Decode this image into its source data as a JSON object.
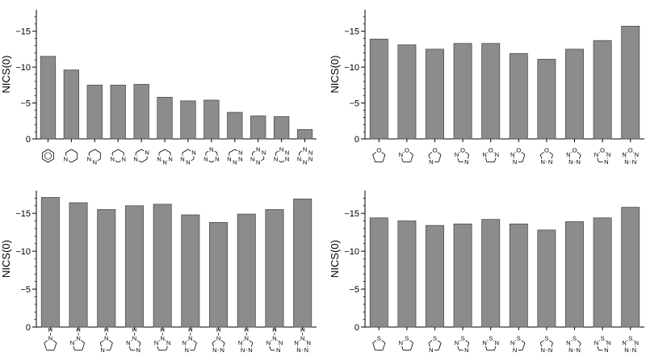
{
  "chart_data": [
    {
      "type": "bar",
      "panel": "top-left",
      "ylabel": "NICS(0)",
      "ylim": [
        0,
        -18
      ],
      "yticks": [
        0,
        -5,
        -10,
        -15
      ],
      "ytick_labels": [
        "0",
        "−5",
        "−10",
        "−15"
      ],
      "values": [
        -11.5,
        -9.6,
        -7.5,
        -7.5,
        -7.6,
        -5.8,
        -5.3,
        -5.4,
        -3.7,
        -3.2,
        -3.1,
        -1.3
      ],
      "category_icons": [
        {
          "hetero": []
        },
        {
          "hetero": [
            {
              "pos": 4,
              "label": "N"
            }
          ]
        },
        {
          "hetero": [
            {
              "pos": 4,
              "label": "N"
            },
            {
              "pos": 3,
              "label": "N"
            }
          ]
        },
        {
          "hetero": [
            {
              "pos": 4,
              "label": "N"
            },
            {
              "pos": 2,
              "label": "N"
            }
          ]
        },
        {
          "hetero": [
            {
              "pos": 4,
              "label": "N"
            },
            {
              "pos": 1,
              "label": "N"
            }
          ]
        },
        {
          "hetero": [
            {
              "pos": 4,
              "label": "N"
            },
            {
              "pos": 3,
              "label": "N"
            },
            {
              "pos": 2,
              "label": "N"
            }
          ]
        },
        {
          "hetero": [
            {
              "pos": 4,
              "label": "N"
            },
            {
              "pos": 3,
              "label": "N"
            },
            {
              "pos": 1,
              "label": "N"
            }
          ]
        },
        {
          "hetero": [
            {
              "pos": 4,
              "label": "N"
            },
            {
              "pos": 2,
              "label": "N"
            },
            {
              "pos": 0,
              "label": "N"
            }
          ]
        },
        {
          "hetero": [
            {
              "pos": 4,
              "label": "N"
            },
            {
              "pos": 3,
              "label": "N"
            },
            {
              "pos": 2,
              "label": "N"
            },
            {
              "pos": 1,
              "label": "N"
            }
          ]
        },
        {
          "hetero": [
            {
              "pos": 4,
              "label": "N"
            },
            {
              "pos": 3,
              "label": "N"
            },
            {
              "pos": 1,
              "label": "N"
            },
            {
              "pos": 0,
              "label": "N"
            }
          ]
        },
        {
          "hetero": [
            {
              "pos": 4,
              "label": "N"
            },
            {
              "pos": 2,
              "label": "N"
            },
            {
              "pos": 1,
              "label": "N"
            },
            {
              "pos": 0,
              "label": "N"
            }
          ]
        },
        {
          "hetero": [
            {
              "pos": 4,
              "label": "N"
            },
            {
              "pos": 3,
              "label": "N"
            },
            {
              "pos": 2,
              "label": "N"
            },
            {
              "pos": 1,
              "label": "N"
            },
            {
              "pos": 0,
              "label": "N"
            }
          ]
        }
      ]
    },
    {
      "type": "bar",
      "panel": "top-right",
      "ylabel": "NICS(0)",
      "ylim": [
        0,
        -18
      ],
      "yticks": [
        0,
        -5,
        -10,
        -15
      ],
      "ytick_labels": [
        "0",
        "−5",
        "−10",
        "−15"
      ],
      "values": [
        -13.9,
        -13.1,
        -12.5,
        -13.3,
        -13.3,
        -11.9,
        -11.1,
        -12.5,
        -13.7,
        -15.7
      ],
      "category_icons": [
        {
          "hetero": [
            {
              "pos": 0,
              "label": "O"
            }
          ]
        },
        {
          "hetero": [
            {
              "pos": 0,
              "label": "O"
            },
            {
              "pos": 4,
              "label": "N"
            }
          ]
        },
        {
          "hetero": [
            {
              "pos": 0,
              "label": "O"
            },
            {
              "pos": 3,
              "label": "N"
            }
          ]
        },
        {
          "hetero": [
            {
              "pos": 0,
              "label": "O"
            },
            {
              "pos": 4,
              "label": "N"
            },
            {
              "pos": 2,
              "label": "N"
            }
          ]
        },
        {
          "hetero": [
            {
              "pos": 0,
              "label": "O"
            },
            {
              "pos": 4,
              "label": "N"
            },
            {
              "pos": 1,
              "label": "N"
            }
          ]
        },
        {
          "hetero": [
            {
              "pos": 0,
              "label": "O"
            },
            {
              "pos": 4,
              "label": "N"
            },
            {
              "pos": 3,
              "label": "N"
            }
          ]
        },
        {
          "hetero": [
            {
              "pos": 0,
              "label": "O"
            },
            {
              "pos": 3,
              "label": "N"
            },
            {
              "pos": 2,
              "label": "N"
            }
          ]
        },
        {
          "hetero": [
            {
              "pos": 0,
              "label": "O"
            },
            {
              "pos": 4,
              "label": "N"
            },
            {
              "pos": 3,
              "label": "N"
            },
            {
              "pos": 2,
              "label": "N"
            }
          ]
        },
        {
          "hetero": [
            {
              "pos": 0,
              "label": "O"
            },
            {
              "pos": 4,
              "label": "N"
            },
            {
              "pos": 2,
              "label": "N"
            },
            {
              "pos": 1,
              "label": "N"
            }
          ]
        },
        {
          "hetero": [
            {
              "pos": 0,
              "label": "O"
            },
            {
              "pos": 4,
              "label": "N"
            },
            {
              "pos": 3,
              "label": "N"
            },
            {
              "pos": 2,
              "label": "N"
            },
            {
              "pos": 1,
              "label": "N"
            }
          ]
        }
      ]
    },
    {
      "type": "bar",
      "panel": "bottom-left",
      "ylabel": "NICS(0)",
      "ylim": [
        0,
        -18
      ],
      "yticks": [
        0,
        -5,
        -10,
        -15
      ],
      "ytick_labels": [
        "0",
        "−5",
        "−10",
        "−15"
      ],
      "values": [
        -17.1,
        -16.4,
        -15.5,
        -16.0,
        -16.2,
        -14.8,
        -13.8,
        -14.9,
        -15.5,
        -16.9
      ],
      "category_icons": [
        {
          "hetero": [
            {
              "pos": 0,
              "label": "N",
              "top": "H"
            }
          ]
        },
        {
          "hetero": [
            {
              "pos": 0,
              "label": "N",
              "top": "H"
            },
            {
              "pos": 4,
              "label": "N"
            }
          ]
        },
        {
          "hetero": [
            {
              "pos": 0,
              "label": "N",
              "top": "H"
            },
            {
              "pos": 3,
              "label": "N"
            }
          ]
        },
        {
          "hetero": [
            {
              "pos": 0,
              "label": "N",
              "top": "H"
            },
            {
              "pos": 4,
              "label": "N"
            },
            {
              "pos": 2,
              "label": "N"
            }
          ]
        },
        {
          "hetero": [
            {
              "pos": 0,
              "label": "N",
              "top": "H"
            },
            {
              "pos": 4,
              "label": "N"
            },
            {
              "pos": 1,
              "label": "N"
            }
          ]
        },
        {
          "hetero": [
            {
              "pos": 0,
              "label": "N",
              "top": "H"
            },
            {
              "pos": 4,
              "label": "N"
            },
            {
              "pos": 3,
              "label": "N"
            }
          ]
        },
        {
          "hetero": [
            {
              "pos": 0,
              "label": "N",
              "top": "H"
            },
            {
              "pos": 3,
              "label": "N"
            },
            {
              "pos": 2,
              "label": "N"
            }
          ]
        },
        {
          "hetero": [
            {
              "pos": 0,
              "label": "N",
              "top": "H"
            },
            {
              "pos": 4,
              "label": "N"
            },
            {
              "pos": 3,
              "label": "N"
            },
            {
              "pos": 2,
              "label": "N"
            }
          ]
        },
        {
          "hetero": [
            {
              "pos": 0,
              "label": "N",
              "top": "H"
            },
            {
              "pos": 4,
              "label": "N"
            },
            {
              "pos": 2,
              "label": "N"
            },
            {
              "pos": 1,
              "label": "N"
            }
          ]
        },
        {
          "hetero": [
            {
              "pos": 0,
              "label": "N",
              "top": "H"
            },
            {
              "pos": 4,
              "label": "N"
            },
            {
              "pos": 3,
              "label": "N"
            },
            {
              "pos": 2,
              "label": "N"
            },
            {
              "pos": 1,
              "label": "N"
            }
          ]
        }
      ]
    },
    {
      "type": "bar",
      "panel": "bottom-right",
      "ylabel": "NICS(0)",
      "ylim": [
        0,
        -18
      ],
      "yticks": [
        0,
        -5,
        -10,
        -15
      ],
      "ytick_labels": [
        "0",
        "−5",
        "−10",
        "−15"
      ],
      "values": [
        -14.4,
        -14.0,
        -13.4,
        -13.6,
        -14.2,
        -13.6,
        -12.8,
        -13.9,
        -14.4,
        -15.8
      ],
      "category_icons": [
        {
          "hetero": [
            {
              "pos": 0,
              "label": "S"
            }
          ]
        },
        {
          "hetero": [
            {
              "pos": 0,
              "label": "S"
            },
            {
              "pos": 4,
              "label": "N"
            }
          ]
        },
        {
          "hetero": [
            {
              "pos": 0,
              "label": "S"
            },
            {
              "pos": 3,
              "label": "N"
            }
          ]
        },
        {
          "hetero": [
            {
              "pos": 0,
              "label": "S"
            },
            {
              "pos": 4,
              "label": "N"
            },
            {
              "pos": 2,
              "label": "N"
            }
          ]
        },
        {
          "hetero": [
            {
              "pos": 0,
              "label": "S"
            },
            {
              "pos": 4,
              "label": "N"
            },
            {
              "pos": 1,
              "label": "N"
            }
          ]
        },
        {
          "hetero": [
            {
              "pos": 0,
              "label": "S"
            },
            {
              "pos": 4,
              "label": "N"
            },
            {
              "pos": 3,
              "label": "N"
            }
          ]
        },
        {
          "hetero": [
            {
              "pos": 0,
              "label": "S"
            },
            {
              "pos": 3,
              "label": "N"
            },
            {
              "pos": 2,
              "label": "N"
            }
          ]
        },
        {
          "hetero": [
            {
              "pos": 0,
              "label": "S"
            },
            {
              "pos": 4,
              "label": "N"
            },
            {
              "pos": 3,
              "label": "N"
            },
            {
              "pos": 2,
              "label": "N"
            }
          ]
        },
        {
          "hetero": [
            {
              "pos": 0,
              "label": "S"
            },
            {
              "pos": 4,
              "label": "N"
            },
            {
              "pos": 2,
              "label": "N"
            },
            {
              "pos": 1,
              "label": "N"
            }
          ]
        },
        {
          "hetero": [
            {
              "pos": 0,
              "label": "S"
            },
            {
              "pos": 4,
              "label": "N"
            },
            {
              "pos": 3,
              "label": "N"
            },
            {
              "pos": 2,
              "label": "N"
            },
            {
              "pos": 1,
              "label": "N"
            }
          ]
        }
      ]
    }
  ],
  "style": {
    "bar_fill": "#8c8c8c",
    "bar_stroke": "#4d4d4d",
    "axis_color": "#000000",
    "icon_stroke": "#000000"
  }
}
